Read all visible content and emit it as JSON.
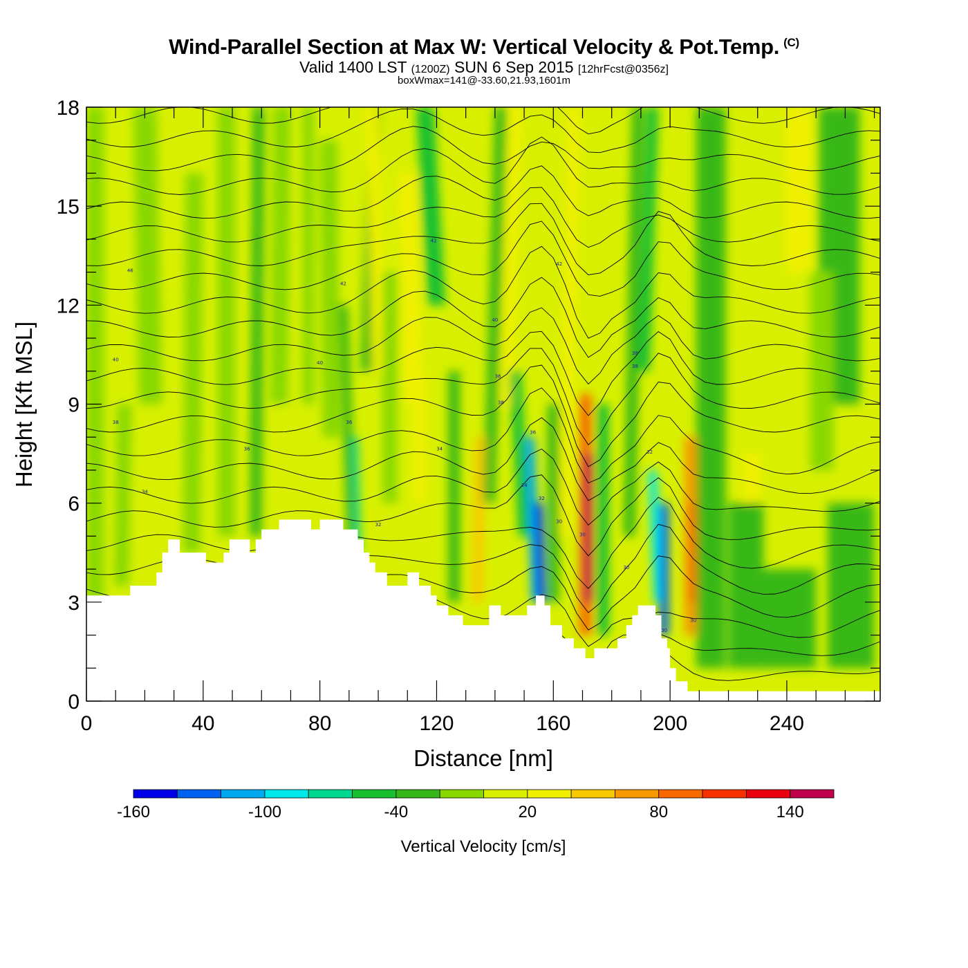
{
  "header": {
    "title": "Wind-Parallel Section at Max W: Vertical Velocity & Pot.Temp.",
    "copyright_mark": "(C)",
    "subtitle_valid": "Valid 1400 LST",
    "subtitle_zulu": "(1200Z)",
    "subtitle_date": "SUN 6 Sep 2015",
    "subtitle_fcst": "[12hrFcst@0356z]",
    "subtitle2": "boxWmax=141@-33.60,21.93,1601m"
  },
  "chart_data": {
    "type": "heatmap",
    "title": "Wind-Parallel Section at Max W: Vertical Velocity & Pot.Temp.",
    "xlabel": "Distance [nm]",
    "ylabel": "Height [Kft MSL]",
    "xlim": [
      0,
      272
    ],
    "ylim": [
      0,
      18
    ],
    "x_ticks": [
      "0",
      "40",
      "80",
      "120",
      "160",
      "200",
      "240"
    ],
    "y_ticks": [
      "0",
      "3",
      "6",
      "9",
      "12",
      "15",
      "18"
    ],
    "grid": false,
    "colorbar": {
      "label": "Vertical Velocity [cm/s]",
      "placement": "bottom",
      "bounds": [
        -160,
        -140,
        -120,
        -100,
        -80,
        -60,
        -40,
        -20,
        0,
        20,
        40,
        60,
        80,
        100,
        120,
        140,
        160
      ],
      "colors": [
        "#0000e8",
        "#0060f0",
        "#00a8f0",
        "#00e8e8",
        "#00d890",
        "#18c030",
        "#38b818",
        "#88d800",
        "#d8f000",
        "#f0f000",
        "#f8c800",
        "#f89800",
        "#f86800",
        "#f83000",
        "#e80010",
        "#c0004a"
      ],
      "tick_labels": [
        "-160",
        "-100",
        "-40",
        "20",
        "80",
        "140"
      ]
    },
    "terrain_kft": [
      [
        0,
        3.2
      ],
      [
        15,
        3.2
      ],
      [
        15,
        3.5
      ],
      [
        24,
        3.5
      ],
      [
        24,
        3.9
      ],
      [
        26,
        3.9
      ],
      [
        26,
        4.5
      ],
      [
        28,
        4.5
      ],
      [
        28,
        4.9
      ],
      [
        32,
        4.9
      ],
      [
        32,
        4.5
      ],
      [
        41,
        4.5
      ],
      [
        41,
        4.2
      ],
      [
        47,
        4.2
      ],
      [
        47,
        4.5
      ],
      [
        49,
        4.5
      ],
      [
        49,
        4.9
      ],
      [
        56,
        4.9
      ],
      [
        56,
        4.5
      ],
      [
        58,
        4.5
      ],
      [
        58,
        4.9
      ],
      [
        60,
        4.9
      ],
      [
        60,
        5.2
      ],
      [
        66,
        5.2
      ],
      [
        66,
        5.5
      ],
      [
        77,
        5.5
      ],
      [
        77,
        5.2
      ],
      [
        80,
        5.2
      ],
      [
        80,
        5.5
      ],
      [
        88,
        5.5
      ],
      [
        88,
        5.2
      ],
      [
        93,
        5.2
      ],
      [
        93,
        4.9
      ],
      [
        95,
        4.9
      ],
      [
        95,
        4.5
      ],
      [
        97,
        4.5
      ],
      [
        97,
        4.2
      ],
      [
        99,
        4.2
      ],
      [
        99,
        3.9
      ],
      [
        103,
        3.9
      ],
      [
        103,
        3.5
      ],
      [
        110,
        3.5
      ],
      [
        110,
        3.9
      ],
      [
        114,
        3.9
      ],
      [
        114,
        3.5
      ],
      [
        118,
        3.5
      ],
      [
        118,
        3.2
      ],
      [
        120,
        3.2
      ],
      [
        120,
        2.9
      ],
      [
        124,
        2.9
      ],
      [
        124,
        2.6
      ],
      [
        129,
        2.6
      ],
      [
        129,
        2.3
      ],
      [
        138,
        2.3
      ],
      [
        138,
        2.9
      ],
      [
        142,
        2.9
      ],
      [
        142,
        2.6
      ],
      [
        151,
        2.6
      ],
      [
        151,
        2.9
      ],
      [
        154,
        2.9
      ],
      [
        154,
        3.2
      ],
      [
        157,
        3.2
      ],
      [
        157,
        2.9
      ],
      [
        159,
        2.9
      ],
      [
        159,
        2.3
      ],
      [
        163,
        2.3
      ],
      [
        163,
        1.9
      ],
      [
        167,
        1.9
      ],
      [
        167,
        1.6
      ],
      [
        171,
        1.6
      ],
      [
        171,
        1.3
      ],
      [
        174,
        1.3
      ],
      [
        174,
        1.6
      ],
      [
        182,
        1.6
      ],
      [
        182,
        1.9
      ],
      [
        185,
        1.9
      ],
      [
        185,
        2.3
      ],
      [
        187,
        2.3
      ],
      [
        187,
        2.6
      ],
      [
        189,
        2.6
      ],
      [
        189,
        2.9
      ],
      [
        195,
        2.9
      ],
      [
        195,
        2.6
      ],
      [
        197,
        2.6
      ],
      [
        197,
        1.9
      ],
      [
        199,
        1.9
      ],
      [
        199,
        1.6
      ],
      [
        200,
        1.6
      ],
      [
        200,
        1.0
      ],
      [
        202,
        1.0
      ],
      [
        202,
        0.6
      ],
      [
        206,
        0.6
      ],
      [
        206,
        0.3
      ],
      [
        272,
        0.3
      ]
    ],
    "max_updraft_cms": 141,
    "max_updraft_location": "-33.60,21.93,1601m",
    "pot_temp_contour_labels": [
      "46",
      "42",
      "42",
      "42",
      "40",
      "40",
      "40",
      "38",
      "38",
      "38",
      "38",
      "36",
      "36",
      "36",
      "36",
      "34",
      "34",
      "34",
      "32",
      "32",
      "32",
      "30",
      "30",
      "30",
      "30",
      "30"
    ]
  }
}
